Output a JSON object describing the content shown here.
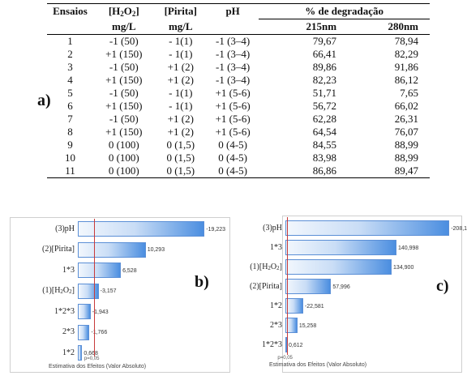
{
  "panel_labels": {
    "a": "a)",
    "b": "b)",
    "c": "c)"
  },
  "table": {
    "headers": {
      "ensaios": "Ensaios",
      "h2o2_pre": "[H",
      "h2o2_sub1": "2",
      "h2o2_mid": "O",
      "h2o2_sub2": "2",
      "h2o2_post": "]",
      "pirita": "[Pirita]",
      "ph": "pH",
      "degradacao": "% de degradação",
      "unit_h2o2": "mg/L",
      "unit_pirita": "mg/L",
      "wl215": "215nm",
      "wl280": "280nm"
    },
    "rows": [
      [
        "1",
        "-1 (50)",
        "- 1(1)",
        "-1 (3–4)",
        "79,67",
        "78,94"
      ],
      [
        "2",
        "+1 (150)",
        "- 1(1)",
        "-1 (3–4)",
        "66,41",
        "82,29"
      ],
      [
        "3",
        "-1 (50)",
        "+1 (2)",
        "-1 (3–4)",
        "89,86",
        "91,86"
      ],
      [
        "4",
        "+1 (150)",
        "+1 (2)",
        "-1 (3–4)",
        "82,23",
        "86,12"
      ],
      [
        "5",
        "-1 (50)",
        "- 1(1)",
        "+1 (5-6)",
        "51,71",
        "7,65"
      ],
      [
        "6",
        "+1 (150)",
        "- 1(1)",
        "+1 (5-6)",
        "56,72",
        "66,02"
      ],
      [
        "7",
        "-1 (50)",
        "+1 (2)",
        "+1 (5-6)",
        "62,28",
        "26,31"
      ],
      [
        "8",
        "+1 (150)",
        "+1 (2)",
        "+1 (5-6)",
        "64,54",
        "76,07"
      ],
      [
        "9",
        "0 (100)",
        "0 (1,5)",
        "0 (4-5)",
        "84,55",
        "88,99"
      ],
      [
        "10",
        "0 (100)",
        "0 (1,5)",
        "0 (4-5)",
        "83,98",
        "88,99"
      ],
      [
        "11",
        "0 (100)",
        "0 (1,5)",
        "0 (4-5)",
        "86,86",
        "89,47"
      ]
    ]
  },
  "chart_data": [
    {
      "type": "bar",
      "orientation": "horizontal",
      "panel": "b",
      "categories": [
        "(3)pH",
        "(2)[Pirita]",
        "1*3",
        "(1)[H2O2]",
        "1*2*3",
        "2*3",
        "1*2"
      ],
      "values": [
        -19.223,
        10.293,
        6.528,
        -3.157,
        -1.943,
        -1.766,
        0.668
      ],
      "value_labels": [
        "-19,223",
        "10,293",
        "6,528",
        "-3,157",
        "-1,943",
        "-1,766",
        "0,668"
      ],
      "xlabel": "Estimativa dos Efeitos (Valor Absoluto)",
      "reference_line_label": "p=0,05",
      "reference_line_value": 2.45,
      "scale_max": 19.8,
      "colors": {
        "bar_start": "#f2f7fd",
        "bar_end": "#4b8ee0",
        "bar_border": "#5b8fd6",
        "ref_line": "#c83a3a"
      }
    },
    {
      "type": "bar",
      "orientation": "horizontal",
      "panel": "c",
      "categories": [
        "(3)pH",
        "1*3",
        "(1)[H2O2]",
        "(2)[Pirita]",
        "1*2",
        "2*3",
        "1*2*3"
      ],
      "values": [
        -208.156,
        140.998,
        134.9,
        57.996,
        -22.581,
        15.258,
        0.612
      ],
      "value_labels": [
        "-208,156",
        "140,998",
        "134,900",
        "57,996",
        "-22,581",
        "15,258",
        "0,612"
      ],
      "xlabel": "Estimativa dos Efeitos (Valor Absoluto)",
      "reference_line_label": "p=0,05",
      "reference_line_value": 2.45,
      "scale_max": 210,
      "colors": {
        "bar_start": "#f2f7fd",
        "bar_end": "#4b8ee0",
        "bar_border": "#5b8fd6",
        "ref_line": "#c83a3a"
      }
    }
  ]
}
